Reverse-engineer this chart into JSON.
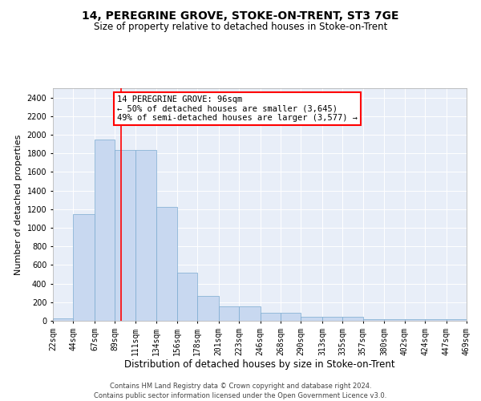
{
  "title": "14, PEREGRINE GROVE, STOKE-ON-TRENT, ST3 7GE",
  "subtitle": "Size of property relative to detached houses in Stoke-on-Trent",
  "xlabel": "Distribution of detached houses by size in Stoke-on-Trent",
  "ylabel": "Number of detached properties",
  "footnote1": "Contains HM Land Registry data © Crown copyright and database right 2024.",
  "footnote2": "Contains public sector information licensed under the Open Government Licence v3.0.",
  "annotation_title": "14 PEREGRINE GROVE: 96sqm",
  "annotation_line1": "← 50% of detached houses are smaller (3,645)",
  "annotation_line2": "49% of semi-detached houses are larger (3,577) →",
  "bar_color": "#c8d8f0",
  "bar_edge_color": "#7aaad0",
  "redline_x": 96,
  "bin_edges": [
    22,
    44,
    67,
    89,
    111,
    134,
    156,
    178,
    201,
    223,
    246,
    268,
    290,
    313,
    335,
    357,
    380,
    402,
    424,
    447,
    469
  ],
  "bar_values": [
    30,
    1150,
    1950,
    1840,
    1840,
    1220,
    520,
    270,
    155,
    155,
    85,
    85,
    45,
    45,
    40,
    20,
    20,
    15,
    15,
    20
  ],
  "ylim": [
    0,
    2500
  ],
  "yticks": [
    0,
    200,
    400,
    600,
    800,
    1000,
    1200,
    1400,
    1600,
    1800,
    2000,
    2200,
    2400
  ],
  "background_color": "#e8eef8",
  "title_fontsize": 10,
  "subtitle_fontsize": 8.5,
  "xlabel_fontsize": 8.5,
  "ylabel_fontsize": 8,
  "tick_fontsize": 7,
  "annotation_fontsize": 7.5,
  "footnote_fontsize": 6
}
